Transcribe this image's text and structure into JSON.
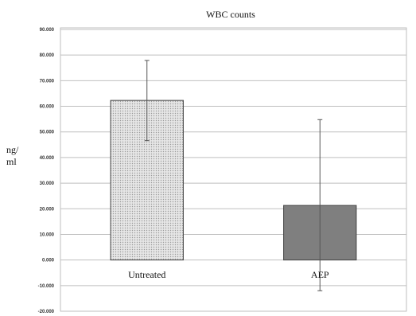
{
  "chart_data": {
    "type": "bar",
    "title": "WBC counts",
    "xlabel": "",
    "ylabel_lines": [
      "ng/",
      "ml"
    ],
    "categories": [
      "Untreated",
      "AEP"
    ],
    "values": [
      62.3,
      21.3
    ],
    "error_bars": [
      {
        "low": 46.6,
        "high": 77.9
      },
      {
        "low": -12.0,
        "high": 54.8
      }
    ],
    "bar_styles": [
      "dotted-light",
      "solid-dark"
    ],
    "ylim": [
      -20,
      90
    ],
    "yticks": [
      {
        "value": 90,
        "label": "90.000"
      },
      {
        "value": 80,
        "label": "80.000"
      },
      {
        "value": 70,
        "label": "70.000"
      },
      {
        "value": 60,
        "label": "60.000"
      },
      {
        "value": 50,
        "label": "50.000"
      },
      {
        "value": 40,
        "label": "40.000"
      },
      {
        "value": 30,
        "label": "30.000"
      },
      {
        "value": 20,
        "label": "20.000"
      },
      {
        "value": 10,
        "label": "10.000"
      },
      {
        "value": 0,
        "label": "0.000"
      },
      {
        "value": -10,
        "label": "-10.000"
      },
      {
        "value": -20,
        "label": "-20.000"
      }
    ],
    "grid": true,
    "legend": "none",
    "colors": {
      "bar_light_fill": "#e6e6e6",
      "bar_light_dot": "#9a9a9a",
      "bar_dark_fill": "#7f7f7f",
      "bar_stroke": "#444444",
      "error_bar": "#555555"
    }
  }
}
